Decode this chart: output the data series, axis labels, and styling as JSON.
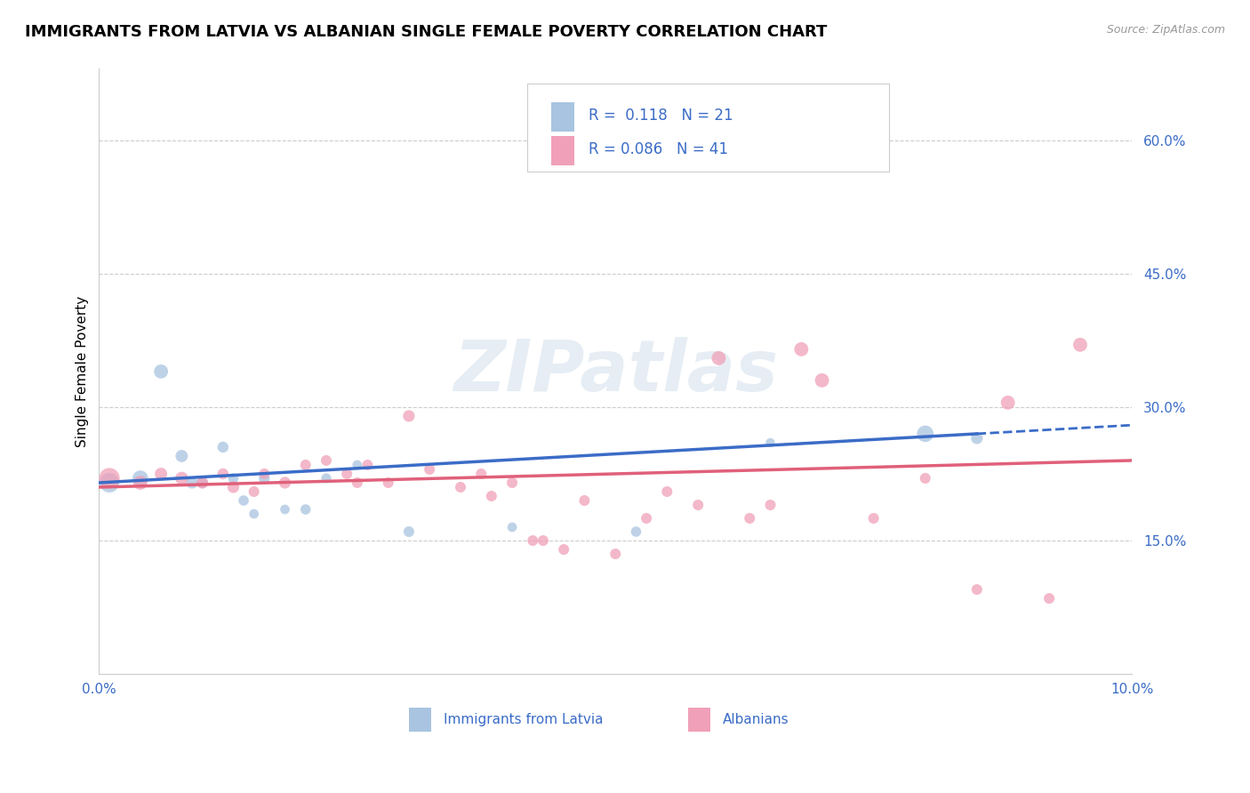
{
  "title": "IMMIGRANTS FROM LATVIA VS ALBANIAN SINGLE FEMALE POVERTY CORRELATION CHART",
  "source": "Source: ZipAtlas.com",
  "ylabel": "Single Female Poverty",
  "watermark": "ZIPatlas",
  "xlim": [
    0.0,
    0.1
  ],
  "ylim": [
    0.0,
    0.68
  ],
  "yticks": [
    0.15,
    0.3,
    0.45,
    0.6
  ],
  "ytick_labels": [
    "15.0%",
    "30.0%",
    "45.0%",
    "60.0%"
  ],
  "latvia_R": "0.118",
  "latvia_N": "21",
  "albanian_R": "0.086",
  "albanian_N": "41",
  "latvia_color": "#a8c4e0",
  "albanian_color": "#f0a0b8",
  "latvia_line_color": "#3b6cc7",
  "albanian_line_color": "#e0607a",
  "latvia_x": [
    0.001,
    0.004,
    0.006,
    0.008,
    0.009,
    0.01,
    0.012,
    0.013,
    0.014,
    0.015,
    0.016,
    0.018,
    0.02,
    0.022,
    0.025,
    0.03,
    0.04,
    0.052,
    0.065,
    0.08,
    0.085
  ],
  "latvia_y": [
    0.215,
    0.22,
    0.34,
    0.245,
    0.215,
    0.215,
    0.255,
    0.22,
    0.195,
    0.18,
    0.22,
    0.185,
    0.185,
    0.22,
    0.235,
    0.16,
    0.165,
    0.16,
    0.26,
    0.27,
    0.265
  ],
  "latvia_sizes": [
    250,
    160,
    130,
    100,
    90,
    80,
    80,
    70,
    70,
    60,
    80,
    60,
    70,
    65,
    60,
    75,
    60,
    70,
    55,
    180,
    90
  ],
  "albanian_x": [
    0.001,
    0.004,
    0.006,
    0.008,
    0.01,
    0.012,
    0.013,
    0.015,
    0.016,
    0.018,
    0.02,
    0.022,
    0.024,
    0.025,
    0.026,
    0.028,
    0.03,
    0.032,
    0.035,
    0.037,
    0.038,
    0.04,
    0.042,
    0.043,
    0.045,
    0.047,
    0.05,
    0.053,
    0.055,
    0.058,
    0.06,
    0.063,
    0.065,
    0.068,
    0.07,
    0.075,
    0.08,
    0.085,
    0.088,
    0.092,
    0.095
  ],
  "albanian_y": [
    0.22,
    0.215,
    0.225,
    0.22,
    0.215,
    0.225,
    0.21,
    0.205,
    0.225,
    0.215,
    0.235,
    0.24,
    0.225,
    0.215,
    0.235,
    0.215,
    0.29,
    0.23,
    0.21,
    0.225,
    0.2,
    0.215,
    0.15,
    0.15,
    0.14,
    0.195,
    0.135,
    0.175,
    0.205,
    0.19,
    0.355,
    0.175,
    0.19,
    0.365,
    0.33,
    0.175,
    0.22,
    0.095,
    0.305,
    0.085,
    0.37
  ],
  "albanian_sizes": [
    280,
    130,
    100,
    110,
    90,
    80,
    90,
    75,
    75,
    90,
    75,
    75,
    75,
    75,
    75,
    75,
    90,
    75,
    75,
    75,
    75,
    75,
    75,
    75,
    75,
    75,
    75,
    75,
    75,
    75,
    130,
    75,
    75,
    130,
    130,
    75,
    75,
    75,
    130,
    75,
    130
  ],
  "background_color": "#ffffff",
  "grid_color": "#cccccc",
  "title_fontsize": 13,
  "axis_label_fontsize": 11,
  "tick_fontsize": 11,
  "tick_color": "#3b6cc7"
}
